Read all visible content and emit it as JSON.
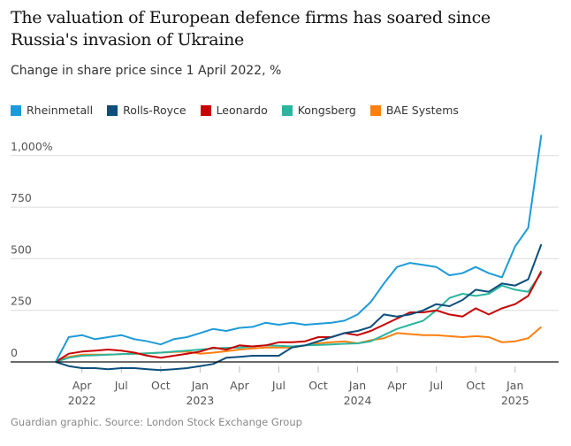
{
  "chart_data": {
    "type": "line",
    "title": "The valuation of European defence firms has soared since Russia's invasion of Ukraine",
    "subtitle": "Change in share price since 1 April 2022, %",
    "xlabel": "",
    "ylabel": "",
    "ylim": [
      -60,
      1100
    ],
    "grid": true,
    "legend_position": "top-left",
    "y_ticks": [
      {
        "value": 0,
        "label": "0"
      },
      {
        "value": 250,
        "label": "250"
      },
      {
        "value": 500,
        "label": "500"
      },
      {
        "value": 750,
        "label": "750"
      },
      {
        "value": 1000,
        "label": "1,000%"
      }
    ],
    "x_ticks": [
      {
        "month": "2022-04",
        "label": "Apr",
        "year": "2022"
      },
      {
        "month": "2022-07",
        "label": "Jul",
        "year": ""
      },
      {
        "month": "2022-10",
        "label": "Oct",
        "year": ""
      },
      {
        "month": "2023-01",
        "label": "Jan",
        "year": "2023"
      },
      {
        "month": "2023-04",
        "label": "Apr",
        "year": ""
      },
      {
        "month": "2023-07",
        "label": "Jul",
        "year": ""
      },
      {
        "month": "2023-10",
        "label": "Oct",
        "year": ""
      },
      {
        "month": "2024-01",
        "label": "Jan",
        "year": "2024"
      },
      {
        "month": "2024-04",
        "label": "Apr",
        "year": ""
      },
      {
        "month": "2024-07",
        "label": "Jul",
        "year": ""
      },
      {
        "month": "2024-10",
        "label": "Oct",
        "year": ""
      },
      {
        "month": "2025-01",
        "label": "Jan",
        "year": "2025"
      }
    ],
    "x": [
      "2022-02",
      "2022-03",
      "2022-04",
      "2022-05",
      "2022-06",
      "2022-07",
      "2022-08",
      "2022-09",
      "2022-10",
      "2022-11",
      "2022-12",
      "2023-01",
      "2023-02",
      "2023-03",
      "2023-04",
      "2023-05",
      "2023-06",
      "2023-07",
      "2023-08",
      "2023-09",
      "2023-10",
      "2023-11",
      "2023-12",
      "2024-01",
      "2024-02",
      "2024-03",
      "2024-04",
      "2024-05",
      "2024-06",
      "2024-07",
      "2024-08",
      "2024-09",
      "2024-10",
      "2024-11",
      "2024-12",
      "2025-01",
      "2025-02",
      "2025-03"
    ],
    "series": [
      {
        "name": "Rheinmetall",
        "color": "#1d9bd8",
        "values": [
          0,
          120,
          130,
          110,
          120,
          130,
          110,
          100,
          85,
          110,
          120,
          140,
          160,
          150,
          165,
          170,
          190,
          180,
          190,
          180,
          185,
          190,
          200,
          230,
          290,
          380,
          460,
          480,
          470,
          460,
          420,
          430,
          460,
          430,
          410,
          560,
          650,
          1100
        ]
      },
      {
        "name": "Rolls-Royce",
        "color": "#0b4f7c",
        "values": [
          0,
          -20,
          -30,
          -30,
          -35,
          -30,
          -30,
          -35,
          -40,
          -35,
          -30,
          -20,
          -10,
          20,
          25,
          30,
          30,
          30,
          70,
          80,
          100,
          120,
          140,
          150,
          170,
          230,
          220,
          230,
          250,
          280,
          270,
          300,
          350,
          340,
          380,
          370,
          400,
          570
        ]
      },
      {
        "name": "Leonardo",
        "color": "#c70000",
        "values": [
          0,
          40,
          50,
          55,
          60,
          55,
          45,
          30,
          20,
          30,
          40,
          50,
          70,
          60,
          80,
          75,
          80,
          95,
          95,
          100,
          120,
          120,
          140,
          130,
          150,
          180,
          210,
          240,
          240,
          250,
          230,
          220,
          260,
          230,
          260,
          280,
          320,
          440
        ]
      },
      {
        "name": "Kongsberg",
        "color": "#2bb5a0",
        "values": [
          0,
          20,
          30,
          32,
          35,
          38,
          40,
          42,
          45,
          50,
          55,
          60,
          65,
          68,
          70,
          75,
          80,
          78,
          75,
          80,
          82,
          85,
          88,
          90,
          100,
          130,
          160,
          180,
          200,
          250,
          310,
          330,
          320,
          330,
          370,
          350,
          340,
          430
        ]
      },
      {
        "name": "BAE Systems",
        "color": "#ff7f0f",
        "values": [
          0,
          25,
          35,
          35,
          35,
          38,
          40,
          42,
          45,
          48,
          50,
          40,
          45,
          52,
          60,
          65,
          70,
          70,
          70,
          80,
          90,
          95,
          100,
          90,
          105,
          115,
          140,
          135,
          130,
          130,
          125,
          120,
          125,
          120,
          95,
          100,
          115,
          170
        ]
      }
    ]
  },
  "footer": "Guardian graphic. Source: London Stock Exchange Group"
}
